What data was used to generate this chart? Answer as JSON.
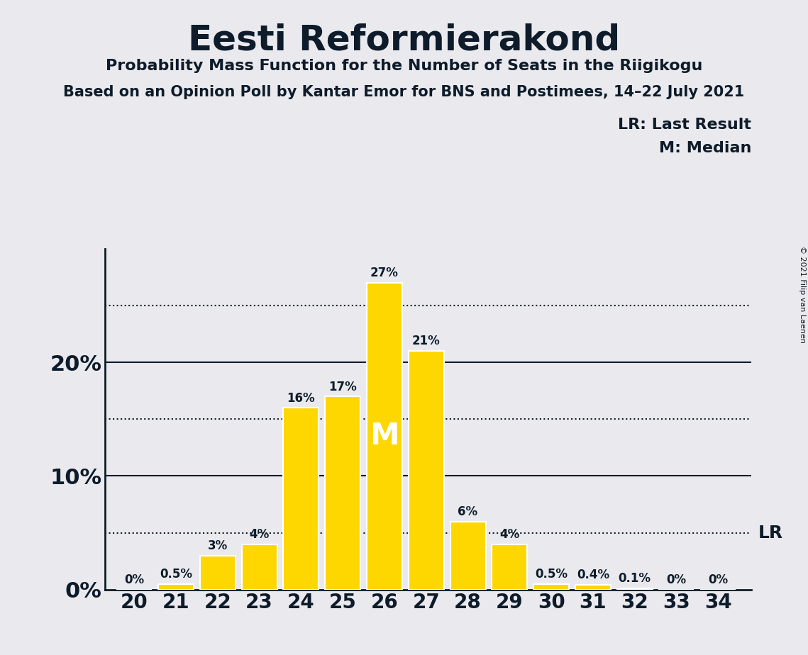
{
  "title": "Eesti Reformierakond",
  "subtitle1": "Probability Mass Function for the Number of Seats in the Riigikogu",
  "subtitle2": "Based on an Opinion Poll by Kantar Emor for BNS and Postimees, 14–22 July 2021",
  "copyright": "© 2021 Filip van Laenen",
  "seats": [
    20,
    21,
    22,
    23,
    24,
    25,
    26,
    27,
    28,
    29,
    30,
    31,
    32,
    33,
    34
  ],
  "probabilities": [
    0.0,
    0.5,
    3.0,
    4.0,
    16.0,
    17.0,
    27.0,
    21.0,
    6.0,
    4.0,
    0.5,
    0.4,
    0.1,
    0.0,
    0.0
  ],
  "bar_color": "#FFD700",
  "bar_edge_color": "#FFFFFF",
  "background_color": "#EAEAEE",
  "text_color": "#0D1B2A",
  "median_seat": 26,
  "median_label": "M",
  "lr_value": 5.0,
  "lr_label": "LR",
  "legend_lr": "LR: Last Result",
  "legend_m": "M: Median",
  "yticks": [
    0,
    10,
    20
  ],
  "solid_lines": [
    10,
    20
  ],
  "dotted_lines": [
    5,
    15,
    25
  ],
  "ylim": [
    0,
    30
  ],
  "bar_width": 0.85,
  "label_formats": [
    "0%",
    "0.5%",
    "3%",
    "4%",
    "16%",
    "17%",
    "27%",
    "21%",
    "6%",
    "4%",
    "0.5%",
    "0.4%",
    "0.1%",
    "0%",
    "0%"
  ]
}
